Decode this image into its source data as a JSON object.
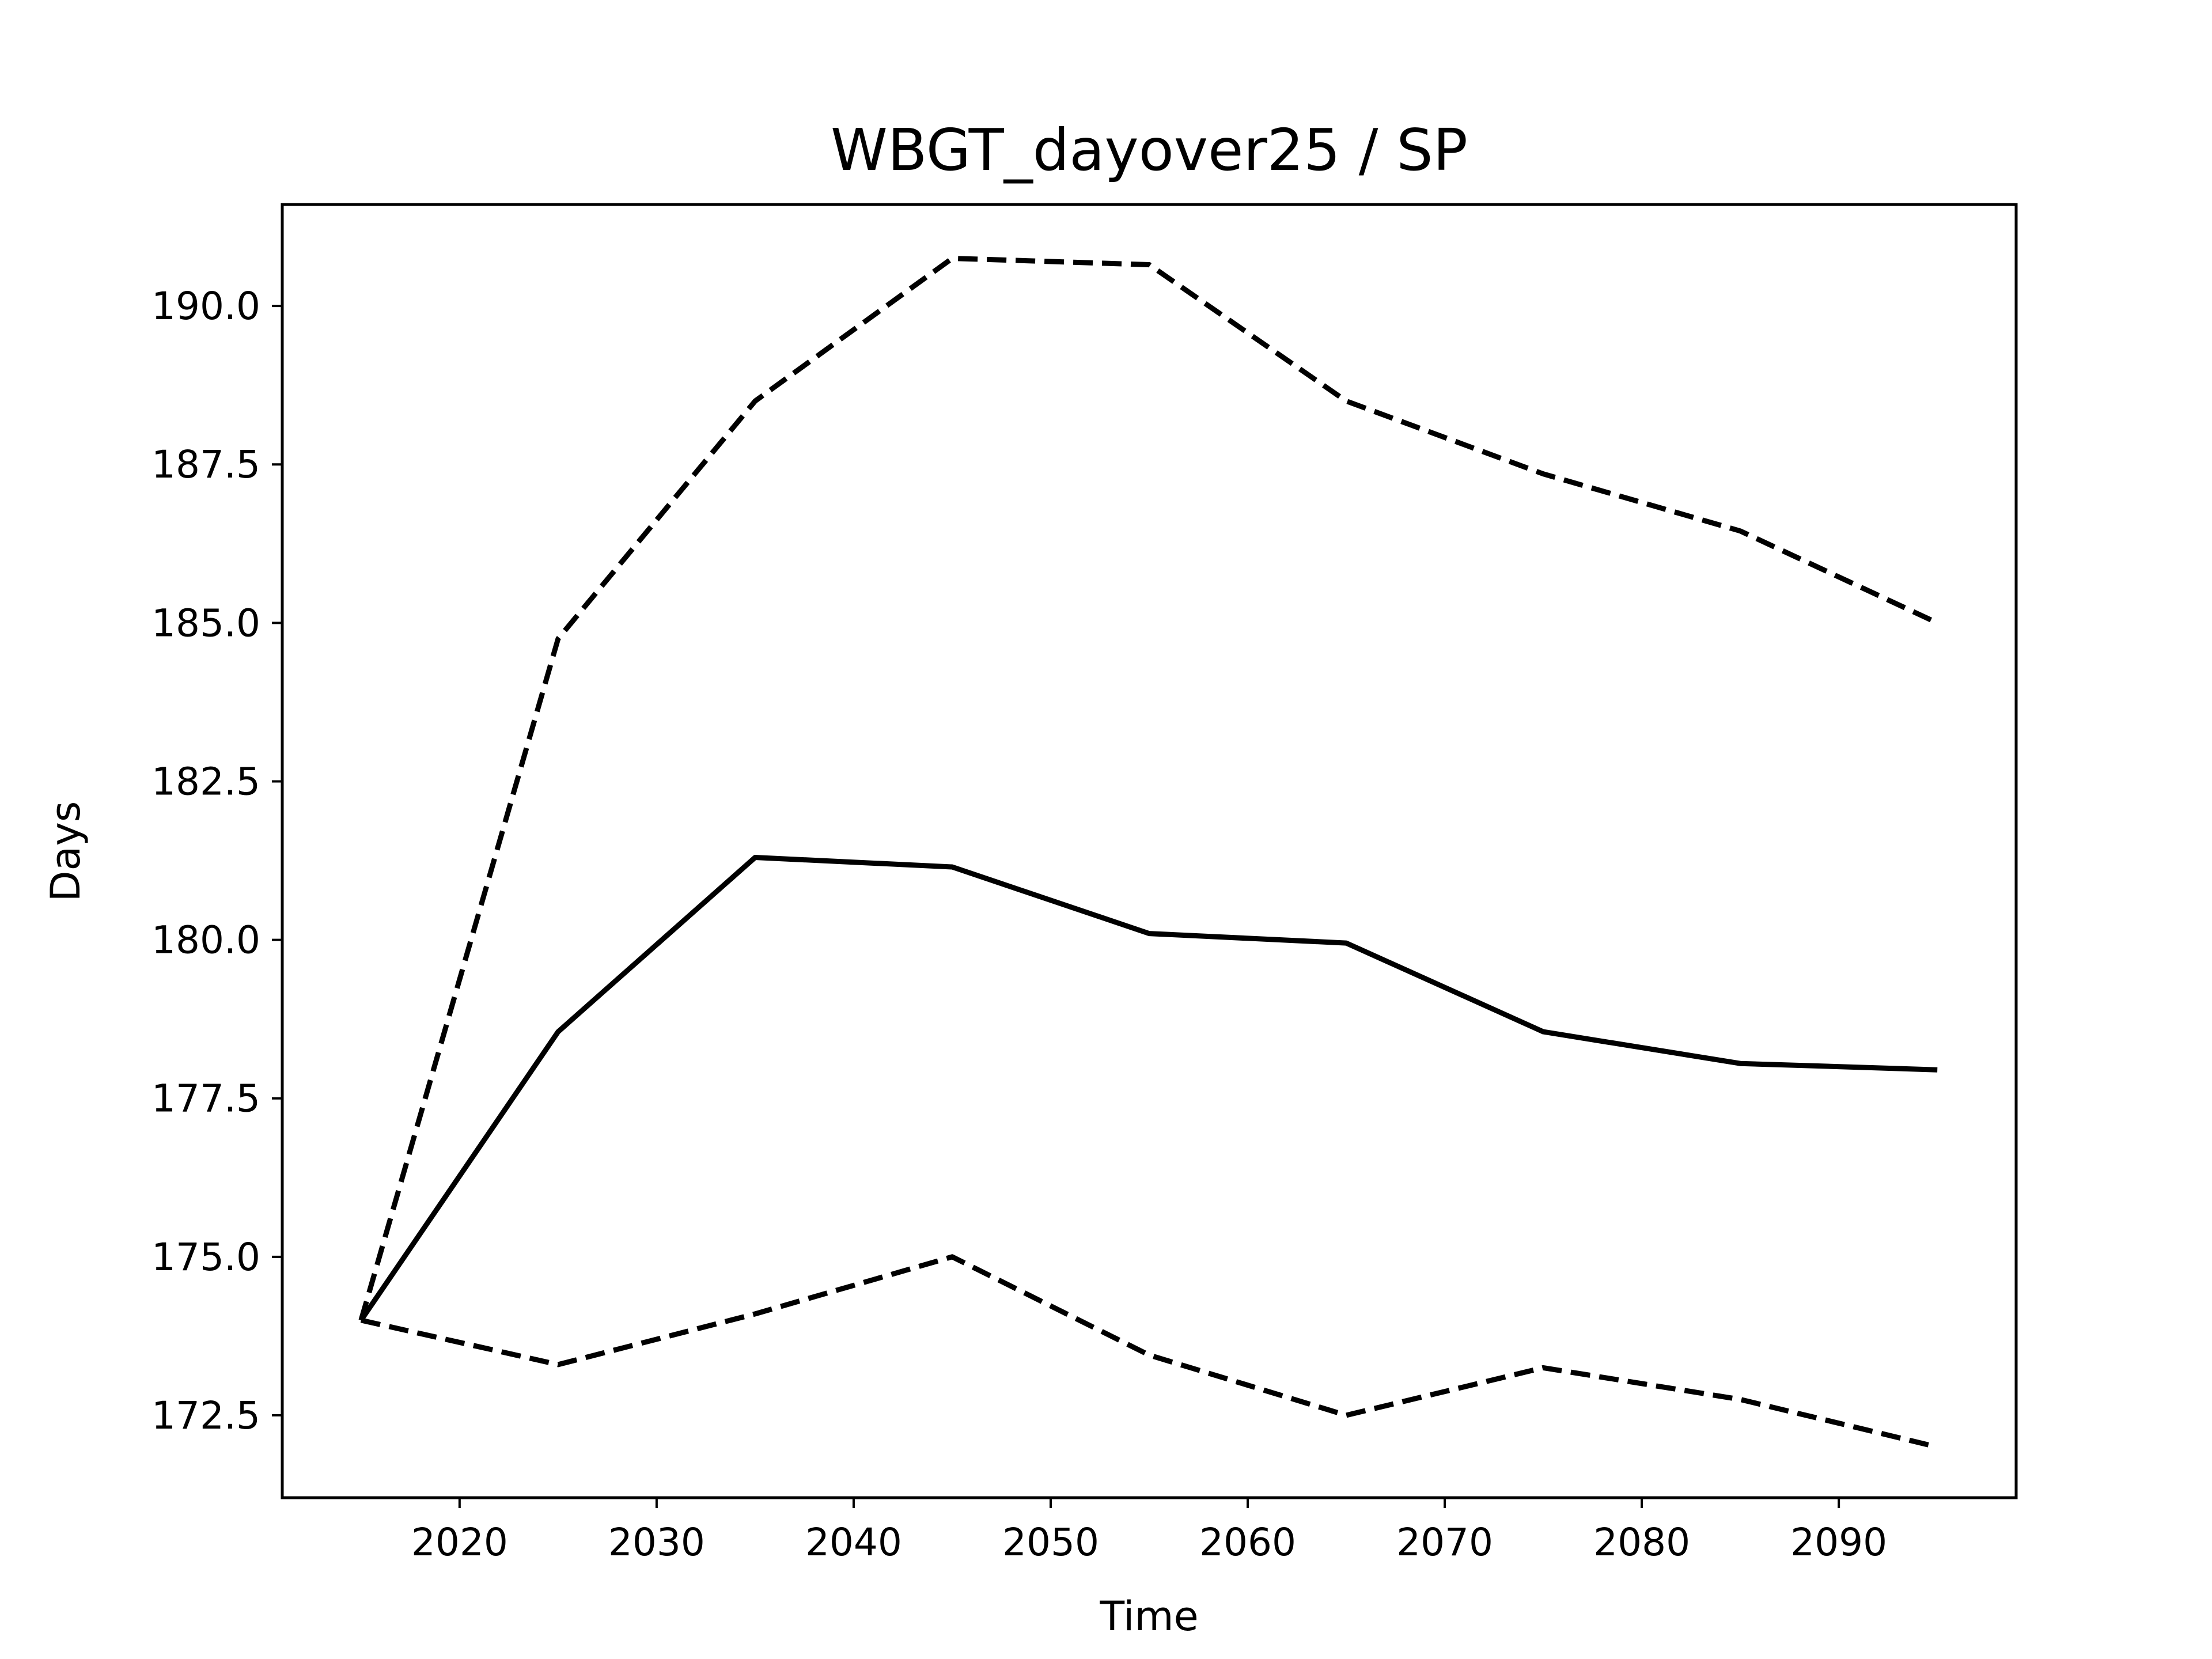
{
  "chart_data": {
    "type": "line",
    "title": "WBGT_dayover25 / SP",
    "xlabel": "Time",
    "ylabel": "Days",
    "xlim": [
      2011,
      2099
    ],
    "ylim": [
      171.2,
      191.6
    ],
    "xticks": [
      2020,
      2030,
      2040,
      2050,
      2060,
      2070,
      2080,
      2090
    ],
    "yticks": [
      172.5,
      175.0,
      177.5,
      180.0,
      182.5,
      185.0,
      187.5,
      190.0
    ],
    "ytick_labels": [
      "172.5",
      "175.0",
      "177.5",
      "180.0",
      "182.5",
      "185.0",
      "187.5",
      "190.0"
    ],
    "grid": false,
    "legend": "none",
    "x": [
      2015,
      2025,
      2035,
      2045,
      2055,
      2065,
      2075,
      2085,
      2095
    ],
    "series": [
      {
        "style": "dashed",
        "color": "#000000",
        "values": [
          174.0,
          184.75,
          188.5,
          190.75,
          190.65,
          188.5,
          187.35,
          186.45,
          185.0
        ]
      },
      {
        "style": "solid",
        "color": "#000000",
        "values": [
          174.0,
          178.55,
          181.3,
          181.15,
          180.1,
          179.95,
          178.55,
          178.05,
          177.95
        ]
      },
      {
        "style": "dashed",
        "color": "#000000",
        "values": [
          174.0,
          173.3,
          174.1,
          175.0,
          173.45,
          172.5,
          173.25,
          172.75,
          172.0
        ]
      }
    ]
  }
}
